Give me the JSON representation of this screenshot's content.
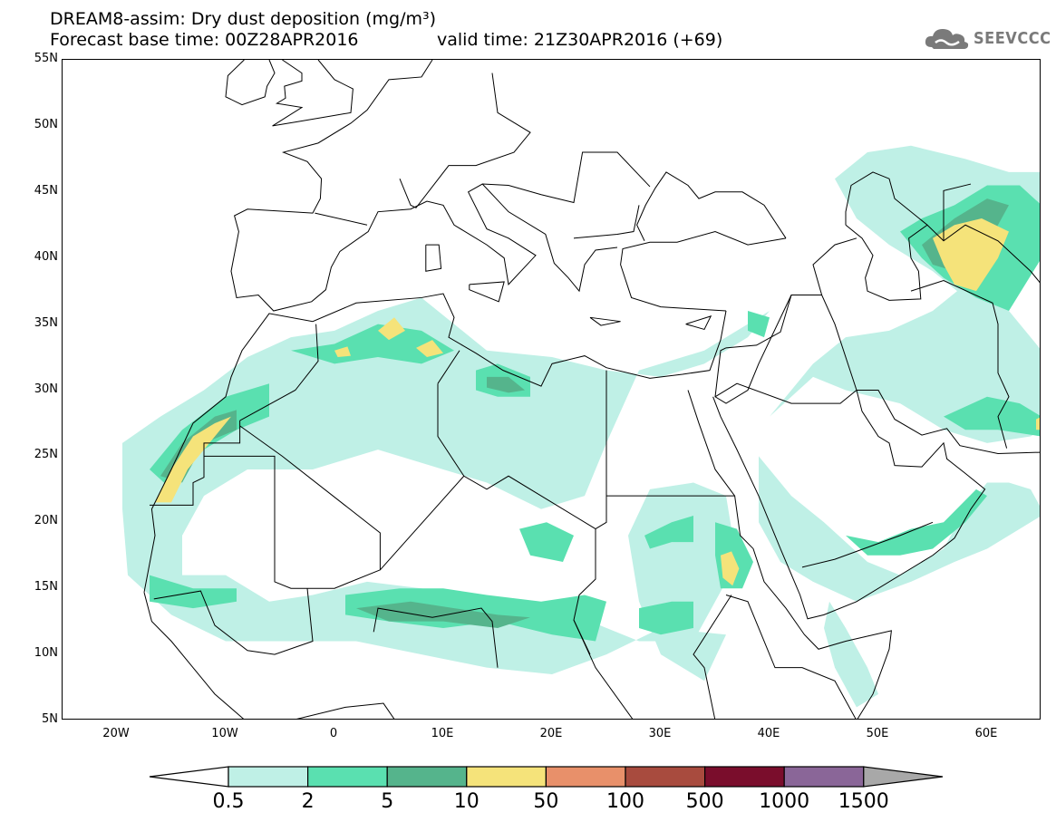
{
  "header": {
    "title_line1": "DREAM8-assim: Dry dust deposition (mg/m³)",
    "title_line2": "Forecast base time: 00Z28APR2016",
    "valid_time": "valid time: 21Z30APR2016 (+69)",
    "logo_text": "SEEVCCC",
    "logo_icon": "cloud-icon"
  },
  "axes": {
    "lat_ticks": [
      "55N",
      "50N",
      "45N",
      "40N",
      "35N",
      "30N",
      "25N",
      "20N",
      "15N",
      "10N",
      "5N"
    ],
    "lon_ticks": [
      "20W",
      "10W",
      "0",
      "10E",
      "20E",
      "30E",
      "40E",
      "50E",
      "60E"
    ]
  },
  "map": {
    "extent": {
      "lon_min": -25,
      "lon_max": 65,
      "lat_min": 5,
      "lat_max": 55
    },
    "colors": {
      "c1": "#bff0e6",
      "c2": "#5ae0b0",
      "c3": "#55b48c",
      "c4": "#f5e37a",
      "border": "#000000"
    }
  },
  "colorbar": {
    "labels": [
      "0.5",
      "2",
      "5",
      "10",
      "50",
      "100",
      "500",
      "1000",
      "1500"
    ],
    "colors": [
      "#ffffff",
      "#bff0e6",
      "#5ae0b0",
      "#55b48c",
      "#f5e37a",
      "#e8906a",
      "#a84b3e",
      "#7a0d2c",
      "#8a6698",
      "#a8a8a8"
    ]
  }
}
